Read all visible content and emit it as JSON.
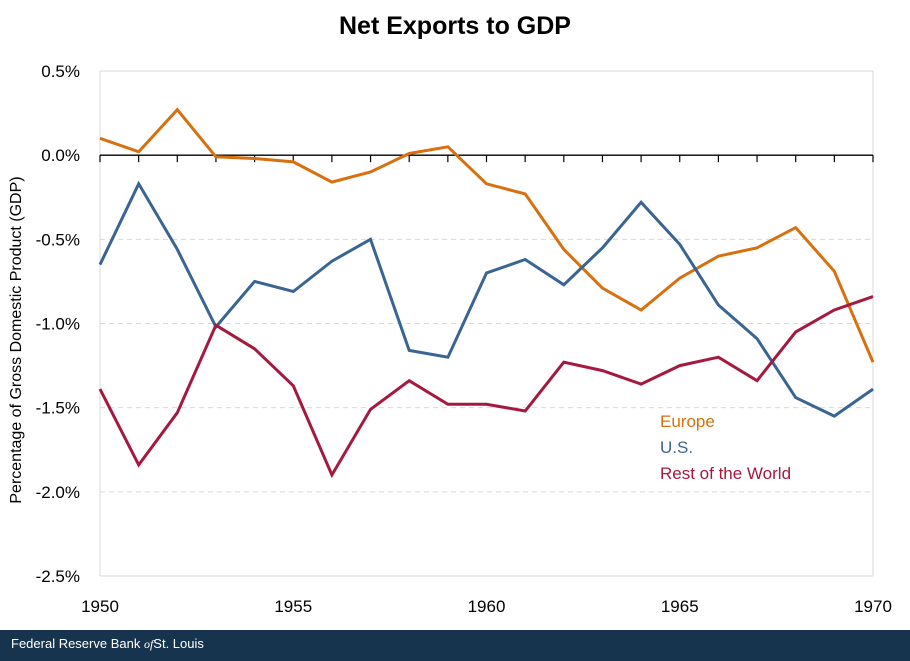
{
  "chart_data": {
    "type": "line",
    "title": "Net Exports to GDP",
    "xlabel": "",
    "ylabel": "Percentage of Gross Domestic Product (GDP)",
    "x": [
      1950,
      1951,
      1952,
      1953,
      1954,
      1955,
      1956,
      1957,
      1958,
      1959,
      1960,
      1961,
      1962,
      1963,
      1964,
      1965,
      1966,
      1967,
      1968,
      1969,
      1970
    ],
    "xlim": [
      1950,
      1970
    ],
    "xticks": [
      1950,
      1955,
      1960,
      1965,
      1970
    ],
    "xtick_labels": [
      "1950",
      "1955",
      "1960",
      "1965",
      "1970"
    ],
    "ylim": [
      -2.5,
      0.5
    ],
    "yticks": [
      0.5,
      0.0,
      -0.5,
      -1.0,
      -1.5,
      -2.0,
      -2.5
    ],
    "ytick_labels": [
      "0.5%",
      "0.0%",
      "-0.5%",
      "-1.0%",
      "-1.5%",
      "-2.0%",
      "-2.5%"
    ],
    "grid": "horizontal dashed",
    "legend_position": "lower-right (inside plot)",
    "series": [
      {
        "name": "Europe",
        "color": "#d8700f",
        "values": [
          0.1,
          0.02,
          0.27,
          -0.01,
          -0.02,
          -0.04,
          -0.16,
          -0.1,
          0.01,
          0.05,
          -0.17,
          -0.23,
          -0.56,
          -0.79,
          -0.92,
          -0.73,
          -0.6,
          -0.55,
          -0.43,
          -0.69,
          -1.23
        ]
      },
      {
        "name": "U.S.",
        "color": "#3a6593",
        "values": [
          -0.65,
          -0.17,
          -0.56,
          -1.02,
          -0.75,
          -0.81,
          -0.63,
          -0.5,
          -1.16,
          -1.2,
          -0.7,
          -0.62,
          -0.77,
          -0.55,
          -0.28,
          -0.53,
          -0.89,
          -1.09,
          -1.44,
          -1.55,
          -1.39
        ]
      },
      {
        "name": "Rest of the World",
        "color": "#a6193f",
        "values": [
          -1.39,
          -1.84,
          -1.53,
          -1.01,
          -1.15,
          -1.37,
          -1.9,
          -1.51,
          -1.34,
          -1.48,
          -1.48,
          -1.52,
          -1.23,
          -1.28,
          -1.36,
          -1.25,
          -1.2,
          -1.34,
          -1.05,
          -0.92,
          -0.84
        ]
      }
    ]
  },
  "footer": {
    "prefix": "Federal Reserve Bank ",
    "of": "of",
    "suffix": "St. Louis",
    "background": "#17344f"
  }
}
